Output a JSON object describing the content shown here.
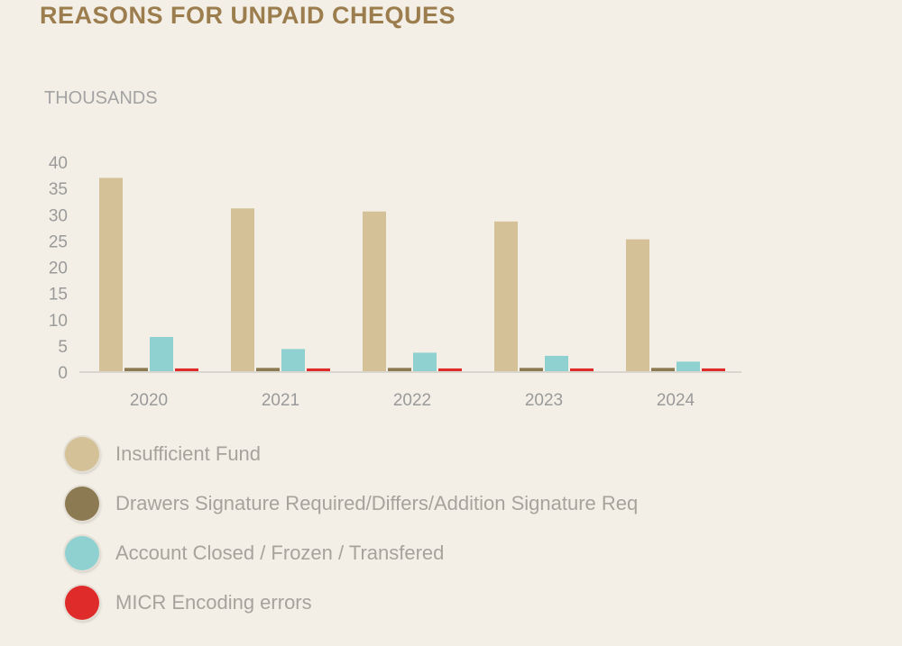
{
  "header": {
    "title": "REASONS FOR UNPAID CHEQUES",
    "unit_label": "THOUSANDS"
  },
  "chart_data": {
    "type": "bar",
    "title": "REASONS FOR UNPAID CHEQUES",
    "ylabel": "THOUSANDS",
    "categories": [
      "2020",
      "2021",
      "2022",
      "2023",
      "2024"
    ],
    "ylim": [
      0,
      40
    ],
    "yticks": [
      0,
      5,
      10,
      15,
      20,
      25,
      30,
      35,
      40
    ],
    "grid": false,
    "legend_position": "bottom-left",
    "series": [
      {
        "name": "Insufficient Fund",
        "color": "#d4c197",
        "values": [
          37,
          31.2,
          30.6,
          28.7,
          25.3
        ]
      },
      {
        "name": "Drawers Signature Required/Differs/Addition Signature Req",
        "color": "#8b7a52",
        "values": [
          0.8,
          0.8,
          0.8,
          0.8,
          0.8
        ]
      },
      {
        "name": "Account Closed / Frozen / Transfered",
        "color": "#8fd1d1",
        "values": [
          6.7,
          4.4,
          3.7,
          3.1,
          2.0
        ]
      },
      {
        "name": "MICR Encoding errors",
        "color": "#e02b2b",
        "values": [
          0.7,
          0.7,
          0.7,
          0.7,
          0.7
        ]
      }
    ]
  }
}
